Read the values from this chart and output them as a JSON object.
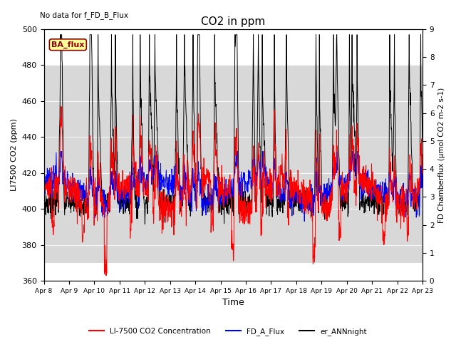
{
  "title": "CO2 in ppm",
  "no_data_text": "No data for f_FD_B_Flux",
  "ba_flux_label": "BA_flux",
  "xlabel": "Time",
  "ylabel_left": "LI7500 CO2 (ppm)",
  "ylabel_right": "FD Chamberflux (μmol CO2 m-2 s-1)",
  "ylim_left": [
    360,
    500
  ],
  "ylim_right": [
    0.0,
    9.0
  ],
  "yticks_left": [
    360,
    380,
    400,
    420,
    440,
    460,
    480,
    500
  ],
  "yticks_right": [
    0.0,
    1.0,
    2.0,
    3.0,
    4.0,
    5.0,
    6.0,
    7.0,
    8.0,
    9.0
  ],
  "xtick_labels": [
    "Apr 8",
    "Apr 9",
    "Apr 10",
    "Apr 11",
    "Apr 12",
    "Apr 13",
    "Apr 14",
    "Apr 15",
    "Apr 16",
    "Apr 17",
    "Apr 18",
    "Apr 19",
    "Apr 20",
    "Apr 21",
    "Apr 22",
    "Apr 23"
  ],
  "shading_ylim": [
    370,
    480
  ],
  "color_red": "#ff0000",
  "color_blue": "#0000ff",
  "color_black": "#000000",
  "color_bg_shade": "#d8d8d8",
  "legend_labels": [
    "LI-7500 CO2 Concentration",
    "FD_A_Flux",
    "er_ANNnight"
  ],
  "ba_flux_facecolor": "#ffff99",
  "ba_flux_edgecolor": "#8b0000",
  "ba_flux_textcolor": "#8b0000",
  "n_days": 15,
  "pts_per_day": 96
}
